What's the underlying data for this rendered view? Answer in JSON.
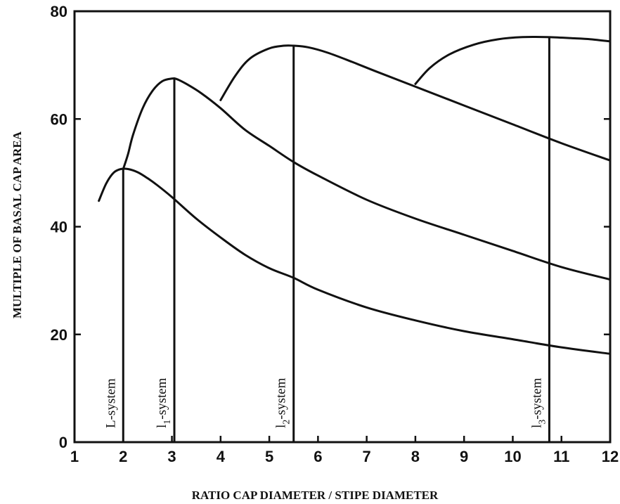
{
  "chart_data": {
    "type": "line",
    "xlabel": "RATIO CAP DIAMETER / STIPE DIAMETER",
    "ylabel": "MULTIPLE OF BASAL CAP AREA",
    "xlim": [
      1,
      12
    ],
    "ylim": [
      0,
      80
    ],
    "x_ticks": [
      "1",
      "2",
      "3",
      "4",
      "5",
      "6",
      "7",
      "8",
      "9",
      "10",
      "11",
      "12"
    ],
    "y_ticks": [
      "0",
      "20",
      "40",
      "60",
      "80"
    ],
    "grid": false,
    "series": [
      {
        "x": [
          1.5,
          1.65,
          1.8,
          1.95,
          2.1,
          2.3,
          2.5,
          2.7,
          3.0,
          3.5,
          4.0,
          4.5,
          5.0,
          5.5,
          6.0,
          7.0,
          8.0,
          9.0,
          10.0,
          11.0,
          12.0
        ],
        "y": [
          44.8,
          48.0,
          50.0,
          50.7,
          50.7,
          50.1,
          49.0,
          47.7,
          45.5,
          41.5,
          38.0,
          34.8,
          32.3,
          30.5,
          28.3,
          25.0,
          22.6,
          20.6,
          19.1,
          17.6,
          16.4
        ]
      },
      {
        "x": [
          2.0,
          2.1,
          2.2,
          2.4,
          2.6,
          2.8,
          3.0,
          3.1,
          3.3,
          3.6,
          4.0,
          4.5,
          5.0,
          5.5,
          6.0,
          7.0,
          8.0,
          9.0,
          10.0,
          11.0,
          12.0
        ],
        "y": [
          50.7,
          53.5,
          57.0,
          62.0,
          65.2,
          67.0,
          67.5,
          67.4,
          66.5,
          64.8,
          62.0,
          58.0,
          55.0,
          52.0,
          49.5,
          45.0,
          41.5,
          38.5,
          35.5,
          32.5,
          30.2
        ]
      },
      {
        "x": [
          4.0,
          4.3,
          4.6,
          5.0,
          5.3,
          5.5,
          5.8,
          6.2,
          6.7,
          7.2,
          8.0,
          9.0,
          10.0,
          11.0,
          12.0
        ],
        "y": [
          63.5,
          68.0,
          71.2,
          73.1,
          73.6,
          73.6,
          73.3,
          72.3,
          70.6,
          68.8,
          66.0,
          62.5,
          59.0,
          55.5,
          52.3
        ]
      },
      {
        "x": [
          8.0,
          8.3,
          8.7,
          9.2,
          9.7,
          10.2,
          10.7,
          11.2,
          11.6,
          12.0
        ],
        "y": [
          66.5,
          69.5,
          72.0,
          73.8,
          74.8,
          75.2,
          75.2,
          75.0,
          74.8,
          74.4
        ]
      }
    ],
    "annotations": {
      "vertical_lines": [
        {
          "x": 2.0,
          "y_top": 50.7,
          "label": "L-system",
          "label_main": "L-system",
          "label_sub": "",
          "label_tail": ""
        },
        {
          "x": 3.05,
          "y_top": 67.5,
          "label": "l1-system",
          "label_main": "l",
          "label_sub": "1",
          "label_tail": "-system"
        },
        {
          "x": 5.5,
          "y_top": 73.6,
          "label": "l2-system",
          "label_main": "l",
          "label_sub": "2",
          "label_tail": "-system"
        },
        {
          "x": 10.75,
          "y_top": 75.2,
          "label": "l3-system",
          "label_main": "l",
          "label_sub": "3",
          "label_tail": "-system"
        }
      ]
    }
  }
}
